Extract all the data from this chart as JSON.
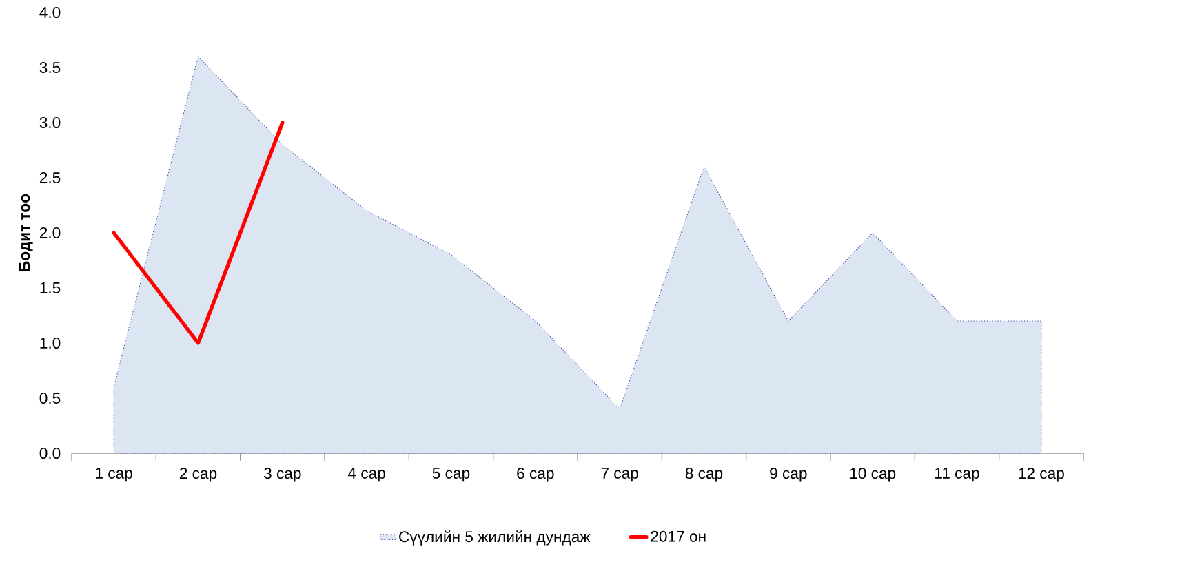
{
  "chart_data": {
    "type": "line",
    "ylabel": "Бодит тоо",
    "categories": [
      "1 сар",
      "2 сар",
      "3 сар",
      "4 сар",
      "5 сар",
      "6 сар",
      "7 сар",
      "8 сар",
      "9 сар",
      "10 сар",
      "11 сар",
      "12 сар"
    ],
    "series": [
      {
        "name": "Сүүлийн 5 жилийн дундаж",
        "type": "area",
        "color": "#dce6f2",
        "line_style": "dotted",
        "values": [
          0.6,
          3.6,
          2.8,
          2.2,
          1.8,
          1.2,
          0.4,
          2.6,
          1.2,
          2.0,
          1.2,
          1.2
        ]
      },
      {
        "name": "2017 он",
        "color": "#ff0000",
        "line_style": "solid",
        "values": [
          2.0,
          1.0,
          3.0,
          null,
          null,
          null,
          null,
          null,
          null,
          null,
          null,
          null
        ]
      }
    ],
    "ylim": [
      0,
      4
    ],
    "yticks": [
      {
        "value": 0,
        "label": "0.0"
      },
      {
        "value": 0.5,
        "label": "0.5"
      },
      {
        "value": 1,
        "label": "1.0"
      },
      {
        "value": 1.5,
        "label": "1.5"
      },
      {
        "value": 2,
        "label": "2.0"
      },
      {
        "value": 2.5,
        "label": "2.5"
      },
      {
        "value": 3,
        "label": "3.0"
      },
      {
        "value": 3.5,
        "label": "3.5"
      },
      {
        "value": 4,
        "label": "4.0"
      }
    ],
    "grid": false,
    "legend": "bottom",
    "marker": "none"
  }
}
